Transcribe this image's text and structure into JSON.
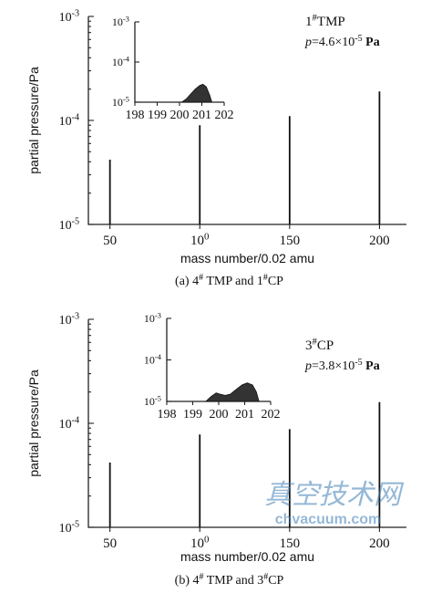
{
  "chart_data": [
    {
      "type": "line",
      "caption": "(a) 4# TMP and 1#CP",
      "legend": {
        "label": "1#TMP",
        "pressure": "p=4.6×10-5 Pa"
      },
      "xlabel": "mass number/0.02 amu",
      "ylabel": "partial pressure/Pa",
      "yscale": "log",
      "ylim": [
        1e-05,
        0.001
      ],
      "xlim": [
        38,
        215
      ],
      "x_ticks": [
        "50",
        "100",
        "150",
        "200"
      ],
      "y_ticks": [
        "10-5",
        "10-4",
        "10-3"
      ],
      "peaks": [
        {
          "x": 50,
          "y": 4.2e-05
        },
        {
          "x": 100,
          "y": 9e-05
        },
        {
          "x": 150,
          "y": 0.00011
        },
        {
          "x": 200,
          "y": 0.00019
        }
      ],
      "inset": {
        "type": "area",
        "xlim": [
          198,
          202
        ],
        "ylim": [
          1e-05,
          0.001
        ],
        "x_ticks": [
          "198",
          "199",
          "200",
          "201",
          "202"
        ],
        "y_ticks": [
          "10-5",
          "10-4",
          "10-3"
        ],
        "profile": [
          [
            200.1,
            1e-05
          ],
          [
            200.3,
            1.2e-05
          ],
          [
            200.5,
            1.6e-05
          ],
          [
            200.7,
            2.1e-05
          ],
          [
            200.9,
            2.6e-05
          ],
          [
            201.05,
            2.8e-05
          ],
          [
            201.2,
            2.4e-05
          ],
          [
            201.35,
            1.5e-05
          ],
          [
            201.45,
            1e-05
          ]
        ]
      }
    },
    {
      "type": "line",
      "caption": "(b) 4# TMP and 3#CP",
      "legend": {
        "label": "3#CP",
        "pressure": "p=3.8×10-5 Pa"
      },
      "xlabel": "mass number/0.02 amu",
      "ylabel": "partial pressure/Pa",
      "yscale": "log",
      "ylim": [
        1e-05,
        0.001
      ],
      "xlim": [
        38,
        215
      ],
      "x_ticks": [
        "50",
        "100",
        "150",
        "200"
      ],
      "y_ticks": [
        "10-5",
        "10-4",
        "10-3"
      ],
      "peaks": [
        {
          "x": 50,
          "y": 4.2e-05
        },
        {
          "x": 100,
          "y": 7.8e-05
        },
        {
          "x": 150,
          "y": 8.8e-05
        },
        {
          "x": 200,
          "y": 0.00016
        }
      ],
      "inset": {
        "type": "area",
        "xlim": [
          198,
          202
        ],
        "ylim": [
          1e-05,
          0.001
        ],
        "x_ticks": [
          "198",
          "199",
          "200",
          "201",
          "202"
        ],
        "y_ticks": [
          "10-5",
          "10-4",
          "10-3"
        ],
        "profile": [
          [
            199.5,
            1e-05
          ],
          [
            199.7,
            1.3e-05
          ],
          [
            199.9,
            1.6e-05
          ],
          [
            200.05,
            1.5e-05
          ],
          [
            200.25,
            1.4e-05
          ],
          [
            200.45,
            1.5e-05
          ],
          [
            200.7,
            2e-05
          ],
          [
            200.9,
            2.5e-05
          ],
          [
            201.1,
            2.8e-05
          ],
          [
            201.3,
            2.5e-05
          ],
          [
            201.45,
            1.7e-05
          ],
          [
            201.55,
            1e-05
          ]
        ]
      }
    }
  ],
  "watermark": {
    "brand": "真空技术网",
    "url": "chvacuum.com"
  }
}
